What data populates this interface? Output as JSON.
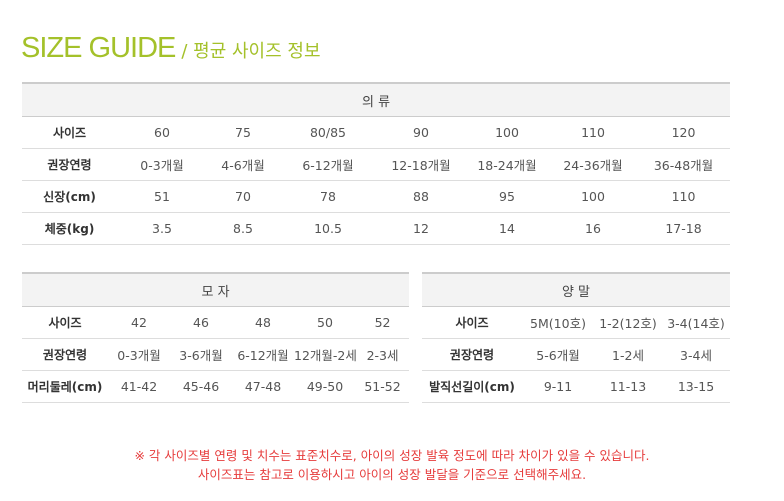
{
  "title": {
    "en": "SIZE GUIDE",
    "ko": "/ 평균 사이즈 정보",
    "color": "#a4c12a"
  },
  "clothing": {
    "header": "의 류",
    "rows": [
      {
        "label": "사이즈",
        "values": [
          "60",
          "75",
          "80/85",
          "90",
          "100",
          "110",
          "120"
        ]
      },
      {
        "label": "권장연령",
        "values": [
          "0-3개월",
          "4-6개월",
          "6-12개월",
          "12-18개월",
          "18-24개월",
          "24-36개월",
          "36-48개월"
        ]
      },
      {
        "label": "신장(cm)",
        "values": [
          "51",
          "70",
          "78",
          "88",
          "95",
          "100",
          "110"
        ]
      },
      {
        "label": "체중(kg)",
        "values": [
          "3.5",
          "8.5",
          "10.5",
          "12",
          "14",
          "16",
          "17-18"
        ]
      }
    ]
  },
  "hat": {
    "header": "모 자",
    "rows": [
      {
        "label": "사이즈",
        "values": [
          "42",
          "46",
          "48",
          "50",
          "52"
        ]
      },
      {
        "label": "권장연령",
        "values": [
          "0-3개월",
          "3-6개월",
          "6-12개월",
          "12개월-2세",
          "2-3세"
        ]
      },
      {
        "label": "머리둘레(cm)",
        "values": [
          "41-42",
          "45-46",
          "47-48",
          "49-50",
          "51-52"
        ]
      }
    ]
  },
  "socks": {
    "header": "양 말",
    "rows": [
      {
        "label": "사이즈",
        "values": [
          "5M(10호)",
          "1-2(12호)",
          "3-4(14호)"
        ]
      },
      {
        "label": "권장연령",
        "values": [
          "5-6개월",
          "1-2세",
          "3-4세"
        ]
      },
      {
        "label": "발직선길이(cm)",
        "values": [
          "9-11",
          "11-13",
          "13-15"
        ]
      }
    ]
  },
  "notes": [
    "※ 각 사이즈별 연령 및 치수는 표준치수로, 아이의 성장 발육 정도에 따라 차이가 있을 수 있습니다.",
    "사이즈표는 참고로 이용하시고 아이의 성장 발달을 기준으로 선택해주세요."
  ],
  "note_color": "#e63c3c"
}
